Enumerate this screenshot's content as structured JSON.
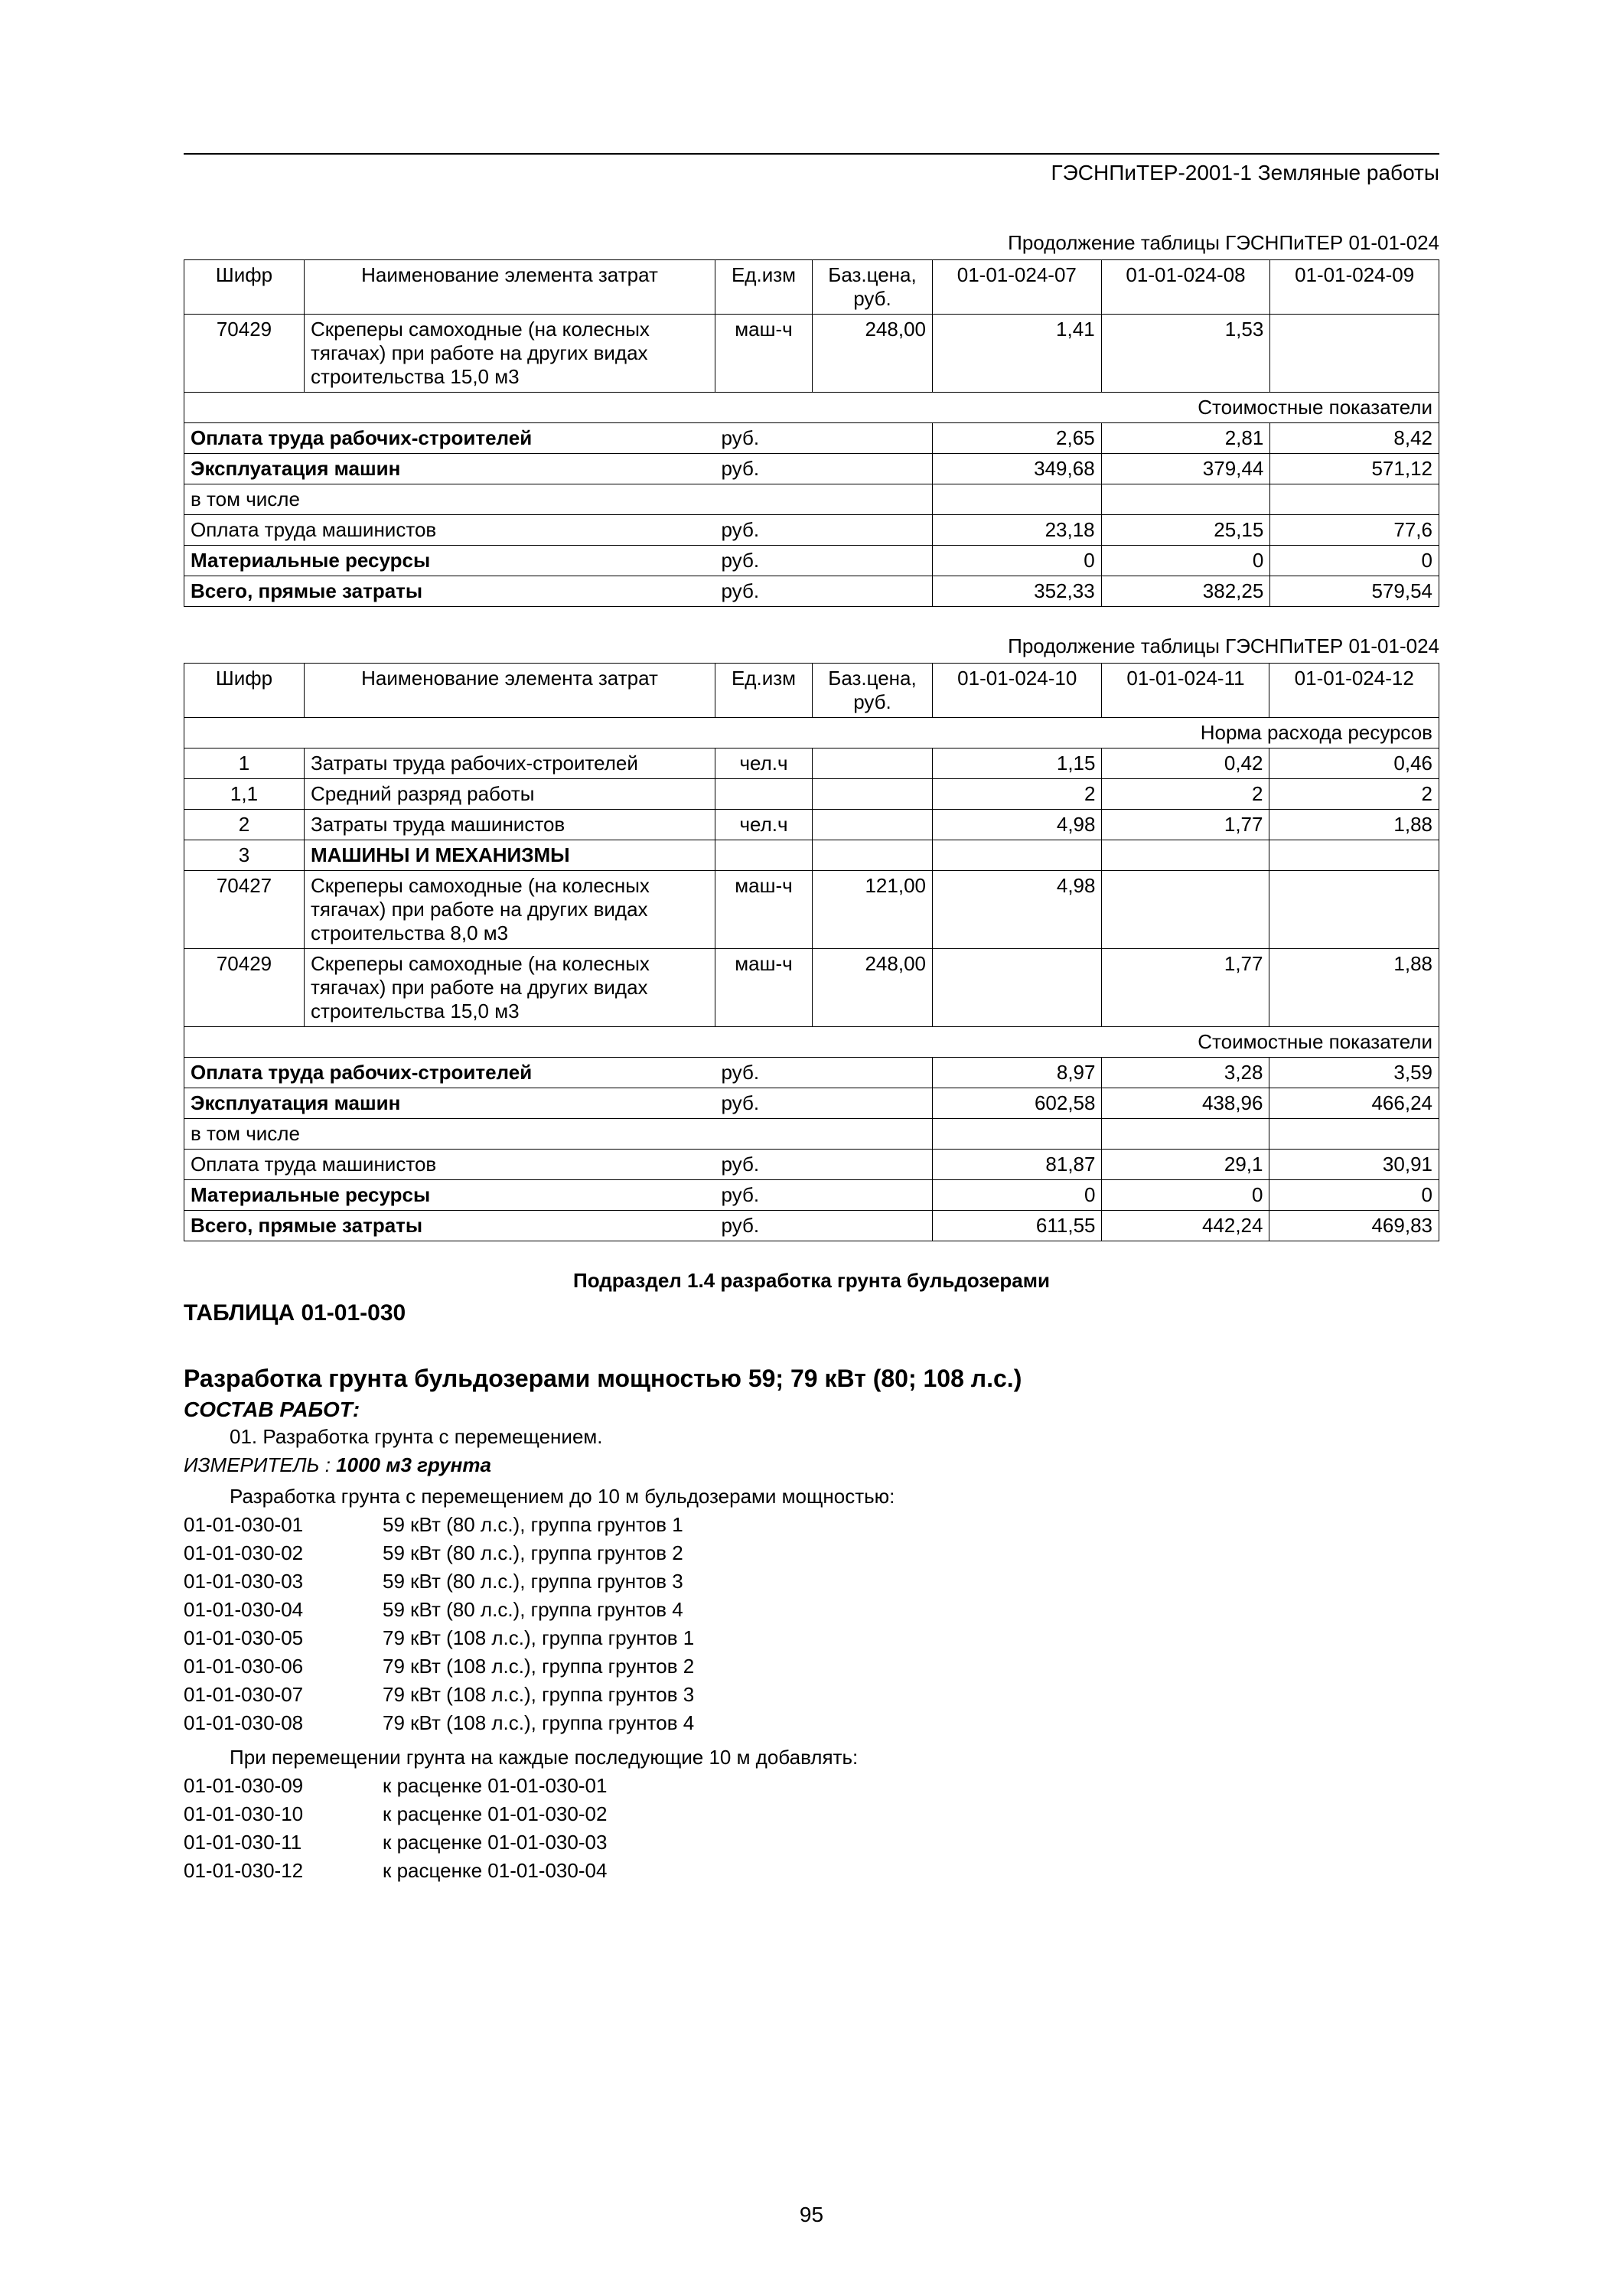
{
  "header": "ГЭСНПиТЕР-2001-1 Земляные работы",
  "table1": {
    "caption": "Продолжение таблицы ГЭСНПиТЕР 01-01-024",
    "head": {
      "shifr": "Шифр",
      "name": "Наименование элемента затрат",
      "unit": "Ед.изм",
      "price": "Баз.цена, руб.",
      "c1": "01-01-024-07",
      "c2": "01-01-024-08",
      "c3": "01-01-024-09"
    },
    "row1": {
      "shifr": "70429",
      "name": "Скреперы самоходные (на колесных тягачах) при работе на других видах строительства 15,0 м3",
      "unit": "маш-ч",
      "price": "248,00",
      "v1": "1,41",
      "v2": "1,53",
      "v3": ""
    },
    "banner": "Стоимостные показатели",
    "costs": [
      {
        "name": "Оплата труда рабочих-строителей",
        "unit": "руб.",
        "v1": "2,65",
        "v2": "2,81",
        "v3": "8,42",
        "bold": true
      },
      {
        "name": "Эксплуатация машин",
        "unit": "руб.",
        "v1": "349,68",
        "v2": "379,44",
        "v3": "571,12",
        "bold": true
      },
      {
        "name": "в том числе",
        "unit": "",
        "v1": "",
        "v2": "",
        "v3": "",
        "bold": false
      },
      {
        "name": "Оплата труда машинистов",
        "unit": "руб.",
        "v1": "23,18",
        "v2": "25,15",
        "v3": "77,6",
        "bold": false
      },
      {
        "name": "Материальные ресурсы",
        "unit": "руб.",
        "v1": "0",
        "v2": "0",
        "v3": "0",
        "bold": true
      },
      {
        "name": "Всего, прямые затраты",
        "unit": "руб.",
        "v1": "352,33",
        "v2": "382,25",
        "v3": "579,54",
        "bold": true
      }
    ]
  },
  "table2": {
    "caption": "Продолжение таблицы ГЭСНПиТЕР 01-01-024",
    "head": {
      "shifr": "Шифр",
      "name": "Наименование элемента затрат",
      "unit": "Ед.изм",
      "price": "Баз.цена, руб.",
      "c1": "01-01-024-10",
      "c2": "01-01-024-11",
      "c3": "01-01-024-12"
    },
    "banner_top": "Норма расхода ресурсов",
    "rows": [
      {
        "shifr": "1",
        "name": "Затраты труда рабочих-строителей",
        "unit": "чел.ч",
        "price": "",
        "v1": "1,15",
        "v2": "0,42",
        "v3": "0,46"
      },
      {
        "shifr": "1,1",
        "name": "Средний разряд работы",
        "unit": "",
        "price": "",
        "v1": "2",
        "v2": "2",
        "v3": "2"
      },
      {
        "shifr": "2",
        "name": "Затраты труда машинистов",
        "unit": "чел.ч",
        "price": "",
        "v1": "4,98",
        "v2": "1,77",
        "v3": "1,88"
      },
      {
        "shifr": "3",
        "name": "МАШИНЫ И МЕХАНИЗМЫ",
        "unit": "",
        "price": "",
        "v1": "",
        "v2": "",
        "v3": "",
        "bold": true
      },
      {
        "shifr": "70427",
        "name": "Скреперы самоходные (на колесных тягачах) при работе на других видах строительства 8,0 м3",
        "unit": "маш-ч",
        "price": "121,00",
        "v1": "4,98",
        "v2": "",
        "v3": ""
      },
      {
        "shifr": "70429",
        "name": "Скреперы самоходные (на колесных тягачах) при работе на других видах строительства 15,0 м3",
        "unit": "маш-ч",
        "price": "248,00",
        "v1": "",
        "v2": "1,77",
        "v3": "1,88"
      }
    ],
    "banner": "Стоимостные показатели",
    "costs": [
      {
        "name": "Оплата труда рабочих-строителей",
        "unit": "руб.",
        "v1": "8,97",
        "v2": "3,28",
        "v3": "3,59",
        "bold": true
      },
      {
        "name": "Эксплуатация машин",
        "unit": "руб.",
        "v1": "602,58",
        "v2": "438,96",
        "v3": "466,24",
        "bold": true
      },
      {
        "name": "в том числе",
        "unit": "",
        "v1": "",
        "v2": "",
        "v3": "",
        "bold": false
      },
      {
        "name": "Оплата труда машинистов",
        "unit": "руб.",
        "v1": "81,87",
        "v2": "29,1",
        "v3": "30,91",
        "bold": false
      },
      {
        "name": "Материальные ресурсы",
        "unit": "руб.",
        "v1": "0",
        "v2": "0",
        "v3": "0",
        "bold": true
      },
      {
        "name": "Всего, прямые затраты",
        "unit": "руб.",
        "v1": "611,55",
        "v2": "442,24",
        "v3": "469,83",
        "bold": true
      }
    ]
  },
  "subdiv": "Подраздел 1.4 разработка грунта бульдозерами",
  "table_number": "ТАБЛИЦА 01-01-030",
  "title2": "Разработка грунта бульдозерами мощностью 59; 79 кВт (80; 108 л.с.)",
  "composition_label": "СОСТАВ РАБОТ:",
  "work_item": "01. Разработка грунта с перемещением.",
  "measure_label": "ИЗМЕРИТЕЛЬ :",
  "measure_value": "1000 м3 грунта",
  "list_intro": "Разработка грунта с перемещением до 10 м бульдозерами мощностью:",
  "codes1": [
    {
      "code": "01-01-030-01",
      "text": "59 кВт (80 л.с.), группа грунтов 1"
    },
    {
      "code": "01-01-030-02",
      "text": "59 кВт (80 л.с.), группа грунтов 2"
    },
    {
      "code": "01-01-030-03",
      "text": "59 кВт (80 л.с.), группа грунтов 3"
    },
    {
      "code": "01-01-030-04",
      "text": "59 кВт (80 л.с.), группа грунтов 4"
    },
    {
      "code": "01-01-030-05",
      "text": "79 кВт (108 л.с.), группа грунтов 1"
    },
    {
      "code": "01-01-030-06",
      "text": "79 кВт (108 л.с.), группа грунтов 2"
    },
    {
      "code": "01-01-030-07",
      "text": "79 кВт (108 л.с.), группа грунтов 3"
    },
    {
      "code": "01-01-030-08",
      "text": "79 кВт (108 л.с.), группа грунтов 4"
    }
  ],
  "list_intro2": "При перемещении грунта на каждые последующие 10 м добавлять:",
  "codes2": [
    {
      "code": "01-01-030-09",
      "text": "к расценке 01-01-030-01"
    },
    {
      "code": "01-01-030-10",
      "text": "к расценке 01-01-030-02"
    },
    {
      "code": "01-01-030-11",
      "text": "к расценке 01-01-030-03"
    },
    {
      "code": "01-01-030-12",
      "text": "к расценке 01-01-030-04"
    }
  ],
  "page_number": "95"
}
